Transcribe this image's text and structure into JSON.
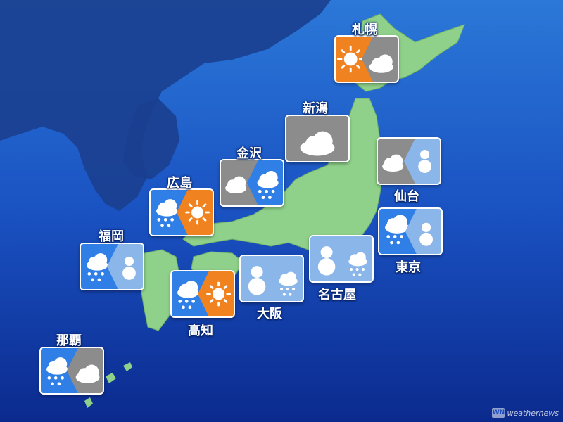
{
  "colors": {
    "sunny": "#f08320",
    "cloudy": "#8c8c8c",
    "rain": "#2f7fe6",
    "snow": "#8bb6ea"
  },
  "cities": [
    {
      "id": "sapporo",
      "name": "札幌",
      "weather": [
        "sunny-icon",
        "cloudy-icon"
      ]
    },
    {
      "id": "niigata",
      "name": "新潟",
      "weather": [
        "cloudy-icon"
      ]
    },
    {
      "id": "kanazawa",
      "name": "金沢",
      "weather": [
        "cloudy-icon",
        "rain-icon"
      ]
    },
    {
      "id": "sendai",
      "name": "仙台",
      "weather": [
        "cloudy-icon",
        "snow-icon"
      ]
    },
    {
      "id": "hiroshima",
      "name": "広島",
      "weather": [
        "rain-icon",
        "sunny-icon"
      ]
    },
    {
      "id": "fukuoka",
      "name": "福岡",
      "weather": [
        "rain-icon",
        "snow-icon"
      ]
    },
    {
      "id": "tokyo",
      "name": "東京",
      "weather": [
        "rain-icon",
        "snow-icon"
      ]
    },
    {
      "id": "nagoya",
      "name": "名古屋",
      "weather": [
        "snow-icon",
        "rain-icon"
      ]
    },
    {
      "id": "osaka",
      "name": "大阪",
      "weather": [
        "snow-icon",
        "rain-icon"
      ]
    },
    {
      "id": "kochi",
      "name": "高知",
      "weather": [
        "rain-icon",
        "sunny-icon"
      ]
    },
    {
      "id": "naha",
      "name": "那覇",
      "weather": [
        "rain-icon",
        "cloudy-icon"
      ]
    }
  ],
  "brand": {
    "mark": "WN",
    "text": "weathernews"
  }
}
